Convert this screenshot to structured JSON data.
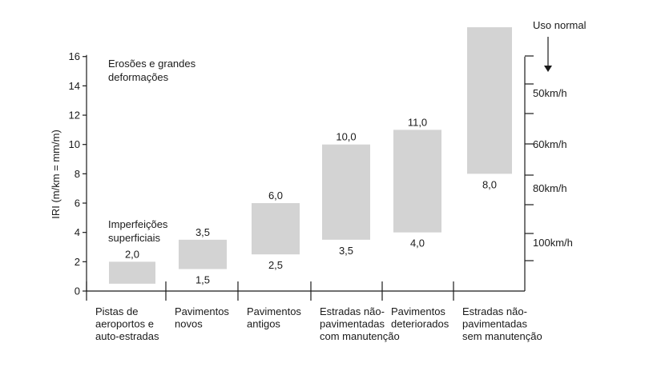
{
  "chart_data": {
    "type": "bar",
    "subtype": "floating-range",
    "ylabel": "IRI (m/km = mm/m)",
    "ylim": [
      0,
      16
    ],
    "yticks": [
      "0",
      "2",
      "4",
      "6",
      "8",
      "10",
      "12",
      "14",
      "16"
    ],
    "grid": false,
    "bar_color": "#d3d3d3",
    "categories": [
      [
        "Pistas de",
        "aeroportos e",
        "auto-estradas"
      ],
      [
        "Pavimentos",
        "novos"
      ],
      [
        "Pavimentos",
        "antigos"
      ],
      [
        "Estradas não-",
        "pavimentadas",
        "com manutenção"
      ],
      [
        "Pavimentos",
        "deteriorados"
      ],
      [
        "Estradas não-",
        "pavimentadas",
        "sem manutenção"
      ]
    ],
    "ranges": [
      {
        "low": 0.5,
        "high": 2.0,
        "low_label": "",
        "high_label": "2,0"
      },
      {
        "low": 1.5,
        "high": 3.5,
        "low_label": "1,5",
        "high_label": "3,5"
      },
      {
        "low": 2.5,
        "high": 6.0,
        "low_label": "2,5",
        "high_label": "6,0"
      },
      {
        "low": 3.5,
        "high": 10.0,
        "low_label": "3,5",
        "high_label": "10,0"
      },
      {
        "low": 4.0,
        "high": 11.0,
        "low_label": "4,0",
        "high_label": "11,0"
      },
      {
        "low": 8.0,
        "high": 18.0,
        "low_label": "8,0",
        "high_label": ""
      }
    ],
    "annotations": {
      "top_left": [
        "Erosões e grandes",
        "deformações"
      ],
      "bottom_left": [
        "Imperfeições",
        "superficiais"
      ]
    },
    "right_axis": {
      "title": "Uso normal",
      "labels": [
        {
          "text": "50km/h",
          "iri": 13.5
        },
        {
          "text": "60km/h",
          "iri": 10.0
        },
        {
          "text": "80km/h",
          "iri": 7.0
        },
        {
          "text": "100km/h",
          "iri": 3.3
        }
      ],
      "ticks": [
        16,
        14,
        12,
        10,
        8,
        6,
        4,
        2,
        0
      ]
    }
  }
}
